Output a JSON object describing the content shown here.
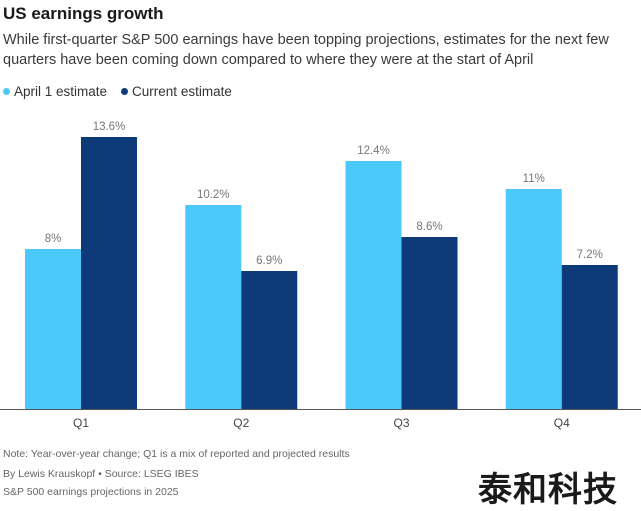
{
  "header": {
    "title": "US earnings growth",
    "subtitle": "While first-quarter S&P 500 earnings have been topping projections, estimates for the next few quarters have been coming down compared to where they were at the start of April"
  },
  "legend": {
    "items": [
      {
        "label": "April 1 estimate",
        "color": "#4cc8fa"
      },
      {
        "label": "Current estimate",
        "color": "#0e3a7a"
      }
    ]
  },
  "chart_data": {
    "type": "bar",
    "title": "US earnings growth",
    "categories": [
      "Q1",
      "Q2",
      "Q3",
      "Q4"
    ],
    "series": [
      {
        "name": "April 1 estimate",
        "color": "#4cc8fa",
        "values": [
          8,
          10.2,
          12.4,
          11
        ],
        "labels": [
          "8%",
          "10.2%",
          "12.4%",
          "11%"
        ]
      },
      {
        "name": "Current estimate",
        "color": "#0e3a7a",
        "values": [
          13.6,
          6.9,
          8.6,
          7.2
        ],
        "labels": [
          "13.6%",
          "6.9%",
          "8.6%",
          "7.2%"
        ]
      }
    ],
    "xlabel": "",
    "ylabel": "",
    "ylim": [
      0,
      13.6
    ]
  },
  "footer": {
    "note": "Note: Year-over-year change; Q1 is a mix of reported and projected results",
    "byline": "By Lewis Krauskopf • Source: LSEG IBES",
    "caption": "S&P 500 earnings projections in 2025"
  },
  "watermark": "泰和科技"
}
